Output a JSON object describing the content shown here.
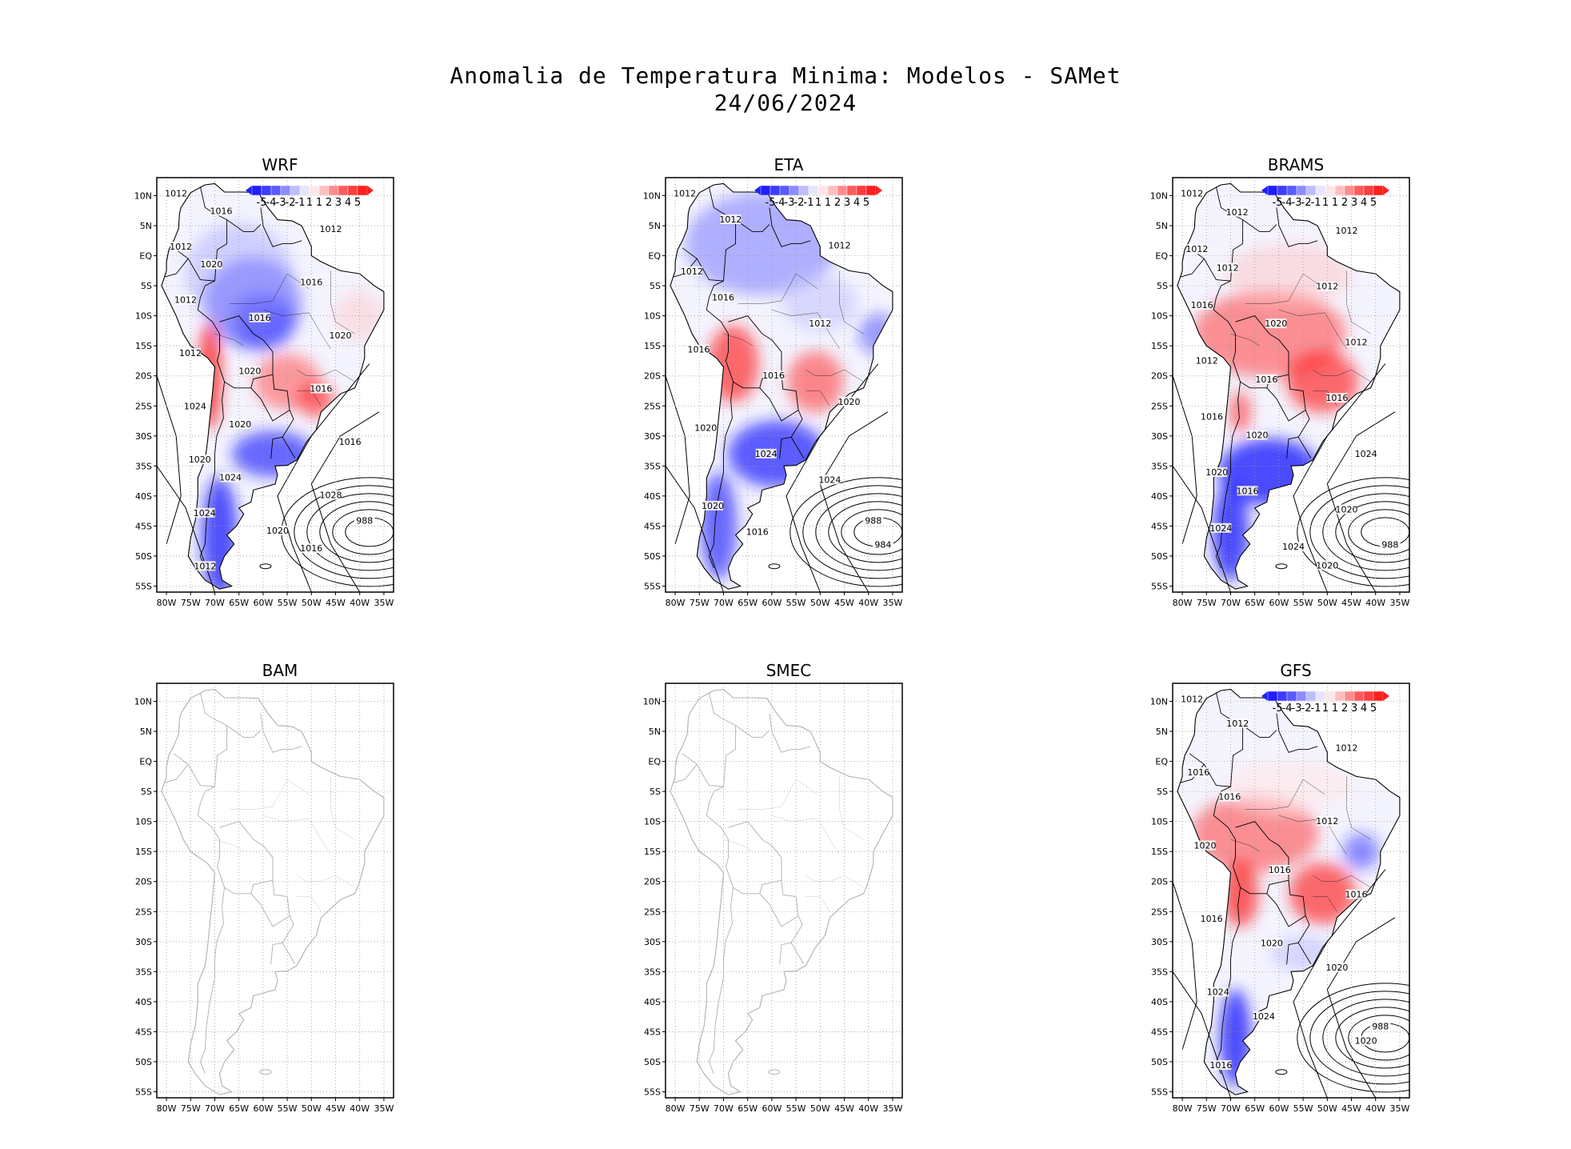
{
  "figure": {
    "title": "Anomalia de Temperatura Minima: Modelos - SAMet",
    "date": "24/06/2024"
  },
  "axes": {
    "lat_labels": [
      "10N",
      "5N",
      "EQ",
      "5S",
      "10S",
      "15S",
      "20S",
      "25S",
      "30S",
      "35S",
      "40S",
      "45S",
      "50S",
      "55S"
    ],
    "lon_labels": [
      "80W",
      "75W",
      "70W",
      "65W",
      "60W",
      "55W",
      "50W",
      "45W",
      "40W",
      "35W"
    ]
  },
  "colorbar": {
    "labels": [
      "-5",
      "-4",
      "-3",
      "-2",
      "-1",
      "1",
      "1",
      "2",
      "3",
      "4",
      "5"
    ],
    "colors": [
      "#1e1eff",
      "#3c3cff",
      "#5a5aff",
      "#8c8cff",
      "#bebeff",
      "#e6e6ff",
      "#ffe6e6",
      "#ffbebe",
      "#ff8c8c",
      "#ff5a5a",
      "#ff3c3c",
      "#ff1e1e"
    ]
  },
  "panels": [
    {
      "name": "WRF",
      "has_data": true,
      "isobars": [
        "1012",
        "1016",
        "1012",
        "1012",
        "1020",
        "1016",
        "1012",
        "1016",
        "1020",
        "1012",
        "1020",
        "1016",
        "1024",
        "1020",
        "1016",
        "1020",
        "1024",
        "1028",
        "1024",
        "1020",
        "1016",
        "1012",
        "988"
      ]
    },
    {
      "name": "ETA",
      "has_data": true,
      "isobars": [
        "1012",
        "1012",
        "1012",
        "1012",
        "1016",
        "1012",
        "1016",
        "1016",
        "1020",
        "1020",
        "1024",
        "1024",
        "1020",
        "1016",
        "988",
        "984"
      ]
    },
    {
      "name": "BRAMS",
      "has_data": true,
      "isobars": [
        "1012",
        "1012",
        "1012",
        "1012",
        "1012",
        "1012",
        "1016",
        "1020",
        "1012",
        "1012",
        "1016",
        "1016",
        "1016",
        "1020",
        "1024",
        "1020",
        "1016",
        "1020",
        "1024",
        "1024",
        "1020",
        "988"
      ]
    },
    {
      "name": "BAM",
      "has_data": false,
      "isobars": []
    },
    {
      "name": "SMEC",
      "has_data": false,
      "isobars": []
    },
    {
      "name": "GFS",
      "has_data": true,
      "isobars": [
        "1012",
        "1012",
        "1012",
        "1016",
        "1016",
        "1012",
        "1020",
        "1016",
        "1016",
        "1016",
        "1020",
        "1020",
        "1024",
        "1024",
        "1020",
        "1016",
        "988"
      ]
    }
  ]
}
